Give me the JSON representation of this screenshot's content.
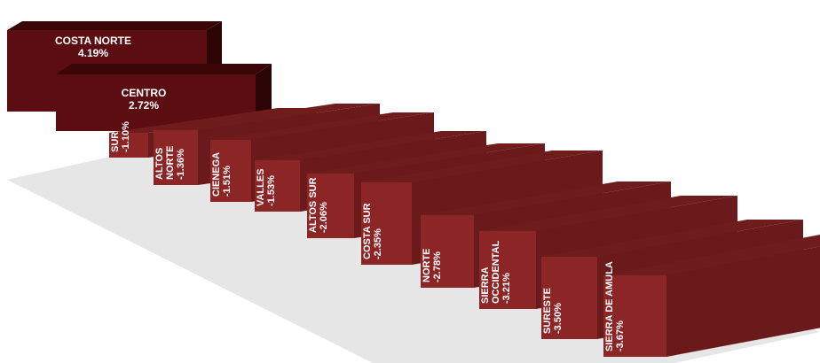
{
  "chart_data": {
    "type": "bar",
    "title": "",
    "xlabel": "",
    "ylabel": "",
    "categories": [
      "COSTA NORTE",
      "CENTRO",
      "SUR",
      "ALTOS NORTE",
      "CIENEGA",
      "VALLES",
      "ALTOS SUR",
      "COSTA SUR",
      "NORTE",
      "SIERRA OCCIDENTAL",
      "SURESTE",
      "SIERRA DE AMULA"
    ],
    "values": [
      4.19,
      2.72,
      -1.1,
      -1.36,
      -1.51,
      -1.53,
      -2.06,
      -2.35,
      -2.78,
      -3.21,
      -3.5,
      -3.67
    ],
    "labels": [
      {
        "name": "COSTA NORTE",
        "value": "4.19%"
      },
      {
        "name": "CENTRO",
        "value": "2.72%"
      },
      {
        "name": "SUR",
        "value": "-1.10%"
      },
      {
        "name": "ALTOS NORTE",
        "value": "-1.36%"
      },
      {
        "name": "CIENEGA",
        "value": "-1.51%"
      },
      {
        "name": "VALLES",
        "value": "-1.53%"
      },
      {
        "name": "ALTOS SUR",
        "value": "-2.06%"
      },
      {
        "name": "COSTA SUR",
        "value": "-2.35%"
      },
      {
        "name": "NORTE",
        "value": "-2.78%"
      },
      {
        "name": "SIERRA OCCIDENTAL",
        "value": "-3.21%"
      },
      {
        "name": "SURESTE",
        "value": "-3.50%"
      },
      {
        "name": "SIERRA DE AMULA",
        "value": "-3.67%"
      }
    ],
    "colors": {
      "positive_front": "#5c0d12",
      "positive_top": "#3a0608",
      "positive_side": "#2c0406",
      "negative_front": "#8c2626",
      "negative_top": "#6f1c1c",
      "negative_side": "#6a1a1a",
      "floor": "#e6e6e6",
      "text": "#ffffff"
    }
  }
}
